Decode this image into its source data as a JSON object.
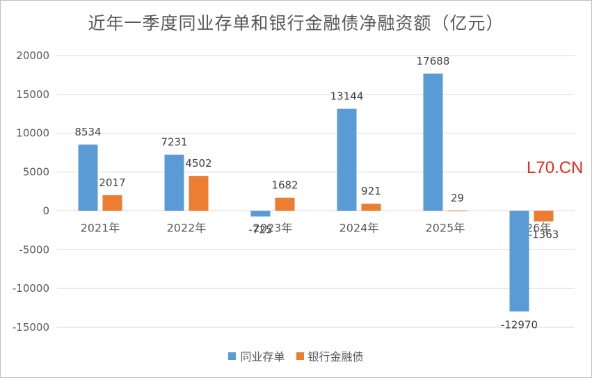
{
  "chart_data": {
    "type": "bar",
    "title": "近年一季度同业存单和银行金融债净融资额（亿元）",
    "categories": [
      "2021年",
      "2022年",
      "2023年",
      "2024年",
      "2025年",
      "2026年"
    ],
    "series": [
      {
        "name": "同业存单",
        "values": [
          8534,
          7231,
          -725,
          13144,
          17688,
          -12970
        ],
        "color": "#5b9bd5"
      },
      {
        "name": "银行金融债",
        "values": [
          2017,
          4502,
          1682,
          921,
          29,
          -1363
        ],
        "color": "#ed7d31"
      }
    ],
    "ylim": [
      -15000,
      20000
    ],
    "yticks": [
      20000,
      15000,
      10000,
      5000,
      0,
      -5000,
      -10000,
      -15000
    ],
    "grid": true,
    "legend_position": "bottom"
  },
  "watermark": "L70.CN",
  "colors": {
    "watermark": "#e8281e",
    "grid": "#d9d9d9",
    "text": "#595959"
  }
}
